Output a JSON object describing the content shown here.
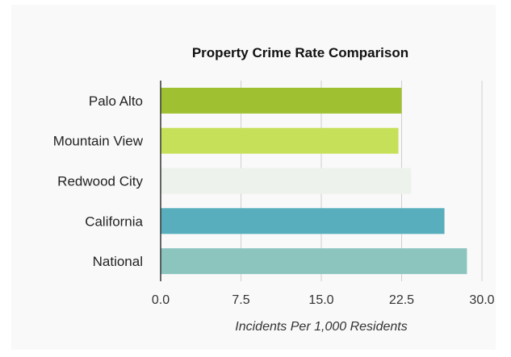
{
  "chart_data": {
    "type": "bar",
    "orientation": "horizontal",
    "title": "Property Crime Rate Comparison",
    "xlabel": "Incidents Per 1,000 Residents",
    "ylabel": "",
    "categories": [
      "Palo Alto",
      "Mountain View",
      "Redwood City",
      "California",
      "National"
    ],
    "values": [
      22.5,
      22.2,
      23.4,
      26.5,
      28.6
    ],
    "colors": [
      "#9fc131",
      "#c6e05a",
      "#edf2ec",
      "#58aebd",
      "#8cc4be"
    ],
    "xlim": [
      0,
      30
    ],
    "xticks": [
      "0.0",
      "7.5",
      "15.0",
      "22.5",
      "30.0"
    ],
    "grid": true,
    "legend": "none"
  }
}
